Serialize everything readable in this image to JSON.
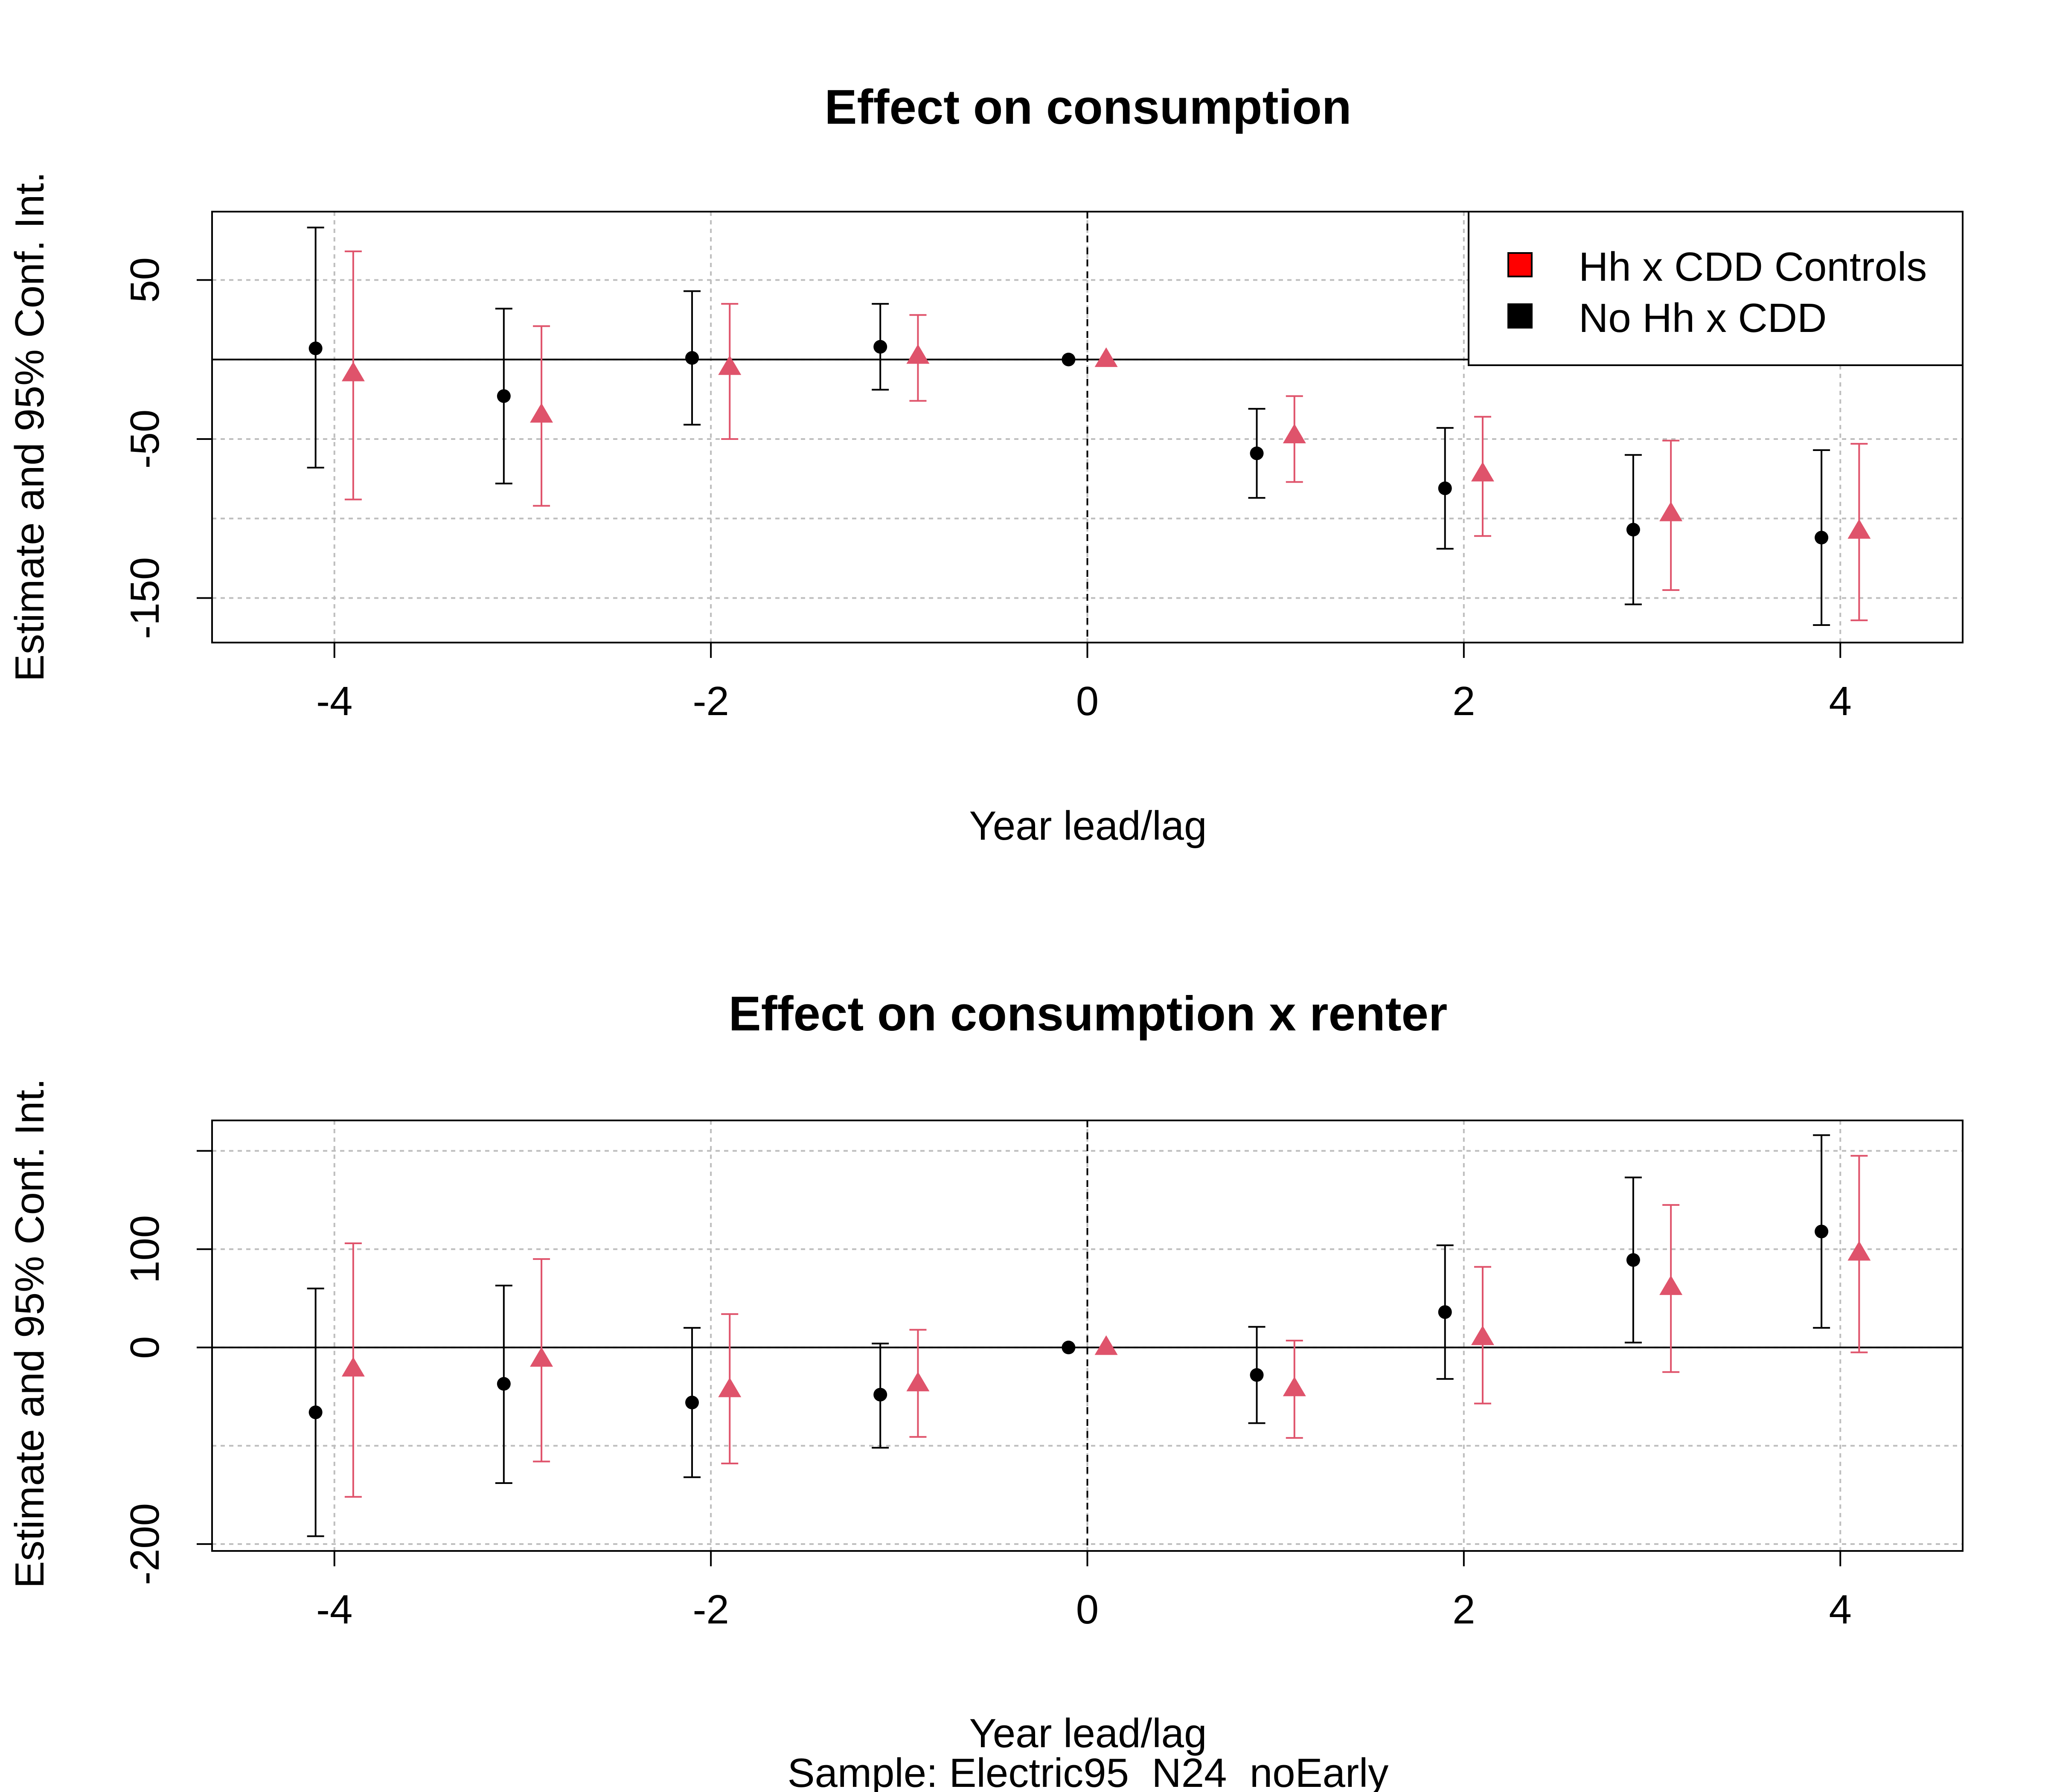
{
  "colors": {
    "series_black": "#000000",
    "series_red": "#df536b",
    "legend_red": "#ff0000",
    "grid": "#bebebe"
  },
  "subtitle": "Sample: Electric95_N24_noEarly",
  "legend": {
    "position": "top-right of upper panel",
    "entries": [
      "Hh x CDD Controls",
      "No Hh x CDD"
    ]
  },
  "chart_data": [
    {
      "type": "scatter",
      "title": "Effect on consumption",
      "xlabel": "Year lead/lag",
      "ylabel": "Estimate and 95% Conf. Int.",
      "xlim": [
        -4.65,
        4.65
      ],
      "ylim": [
        -178,
        93
      ],
      "xticks": [
        -4,
        -2,
        0,
        2,
        4
      ],
      "xtick_labels": [
        "-4",
        "-2",
        "0",
        "2",
        "4"
      ],
      "yticks": [
        -150,
        -50,
        50
      ],
      "ytick_labels": [
        "-150",
        "-50",
        "50"
      ],
      "grid": {
        "y": [
          -150,
          -100,
          -50,
          0,
          50
        ],
        "x": [
          -4,
          -2,
          0,
          2,
          4
        ]
      },
      "zero_line": true,
      "vline_at": 0,
      "x": [
        -4,
        -3,
        -2,
        -1,
        0,
        1,
        2,
        3,
        4
      ],
      "series": [
        {
          "name": "No Hh x CDD",
          "color": "#000000",
          "marker": "circle",
          "offset": -0.1,
          "estimate": [
            7,
            -23,
            1,
            8,
            0,
            -59,
            -81,
            -107,
            -112
          ],
          "ci_low": [
            -68,
            -78,
            -41,
            -19,
            0,
            -87,
            -119,
            -154,
            -167
          ],
          "ci_high": [
            83,
            32,
            43,
            35,
            0,
            -31,
            -43,
            -60,
            -57
          ]
        },
        {
          "name": "Hh x CDD Controls",
          "color": "#df536b",
          "marker": "triangle",
          "offset": 0.1,
          "estimate": [
            -9,
            -35,
            -5,
            2,
            0,
            -48,
            -72,
            -97,
            -108
          ],
          "ci_low": [
            -88,
            -92,
            -50,
            -26,
            0,
            -77,
            -111,
            -145,
            -164
          ],
          "ci_high": [
            68,
            21,
            35,
            28,
            0,
            -23,
            -36,
            -51,
            -53
          ]
        }
      ]
    },
    {
      "type": "scatter",
      "title": "Effect on consumption x renter",
      "xlabel": "Year lead/lag",
      "ylabel": "Estimate and 95% Conf. Int.",
      "xlim": [
        -4.65,
        4.65
      ],
      "ylim": [
        -207,
        231
      ],
      "xticks": [
        -4,
        -2,
        0,
        2,
        4
      ],
      "xtick_labels": [
        "-4",
        "-2",
        "0",
        "2",
        "4"
      ],
      "yticks": [
        -200,
        0,
        100
      ],
      "ytick_labels": [
        "-200",
        "0",
        "100"
      ],
      "extra_ytick_marks": [
        200
      ],
      "grid": {
        "y": [
          -200,
          -100,
          0,
          100,
          200
        ],
        "x": [
          -4,
          -2,
          0,
          2,
          4
        ]
      },
      "zero_line": true,
      "vline_at": 0,
      "x": [
        -4,
        -3,
        -2,
        -1,
        0,
        1,
        2,
        3,
        4
      ],
      "series": [
        {
          "name": "No Hh x CDD",
          "color": "#000000",
          "marker": "circle",
          "offset": -0.1,
          "estimate": [
            -66,
            -37,
            -56,
            -48,
            0,
            -28,
            36,
            89,
            118
          ],
          "ci_low": [
            -192,
            -138,
            -132,
            -102,
            0,
            -77,
            -32,
            5,
            20
          ],
          "ci_high": [
            60,
            63,
            20,
            4,
            0,
            21,
            104,
            173,
            216
          ]
        },
        {
          "name": "Hh x CDD Controls",
          "color": "#df536b",
          "marker": "triangle",
          "offset": 0.1,
          "estimate": [
            -22,
            -12,
            -43,
            -37,
            0,
            -42,
            10,
            61,
            96
          ],
          "ci_low": [
            -152,
            -116,
            -118,
            -91,
            0,
            -92,
            -57,
            -25,
            -5
          ],
          "ci_high": [
            106,
            90,
            34,
            18,
            0,
            7,
            82,
            145,
            195
          ]
        }
      ]
    }
  ]
}
